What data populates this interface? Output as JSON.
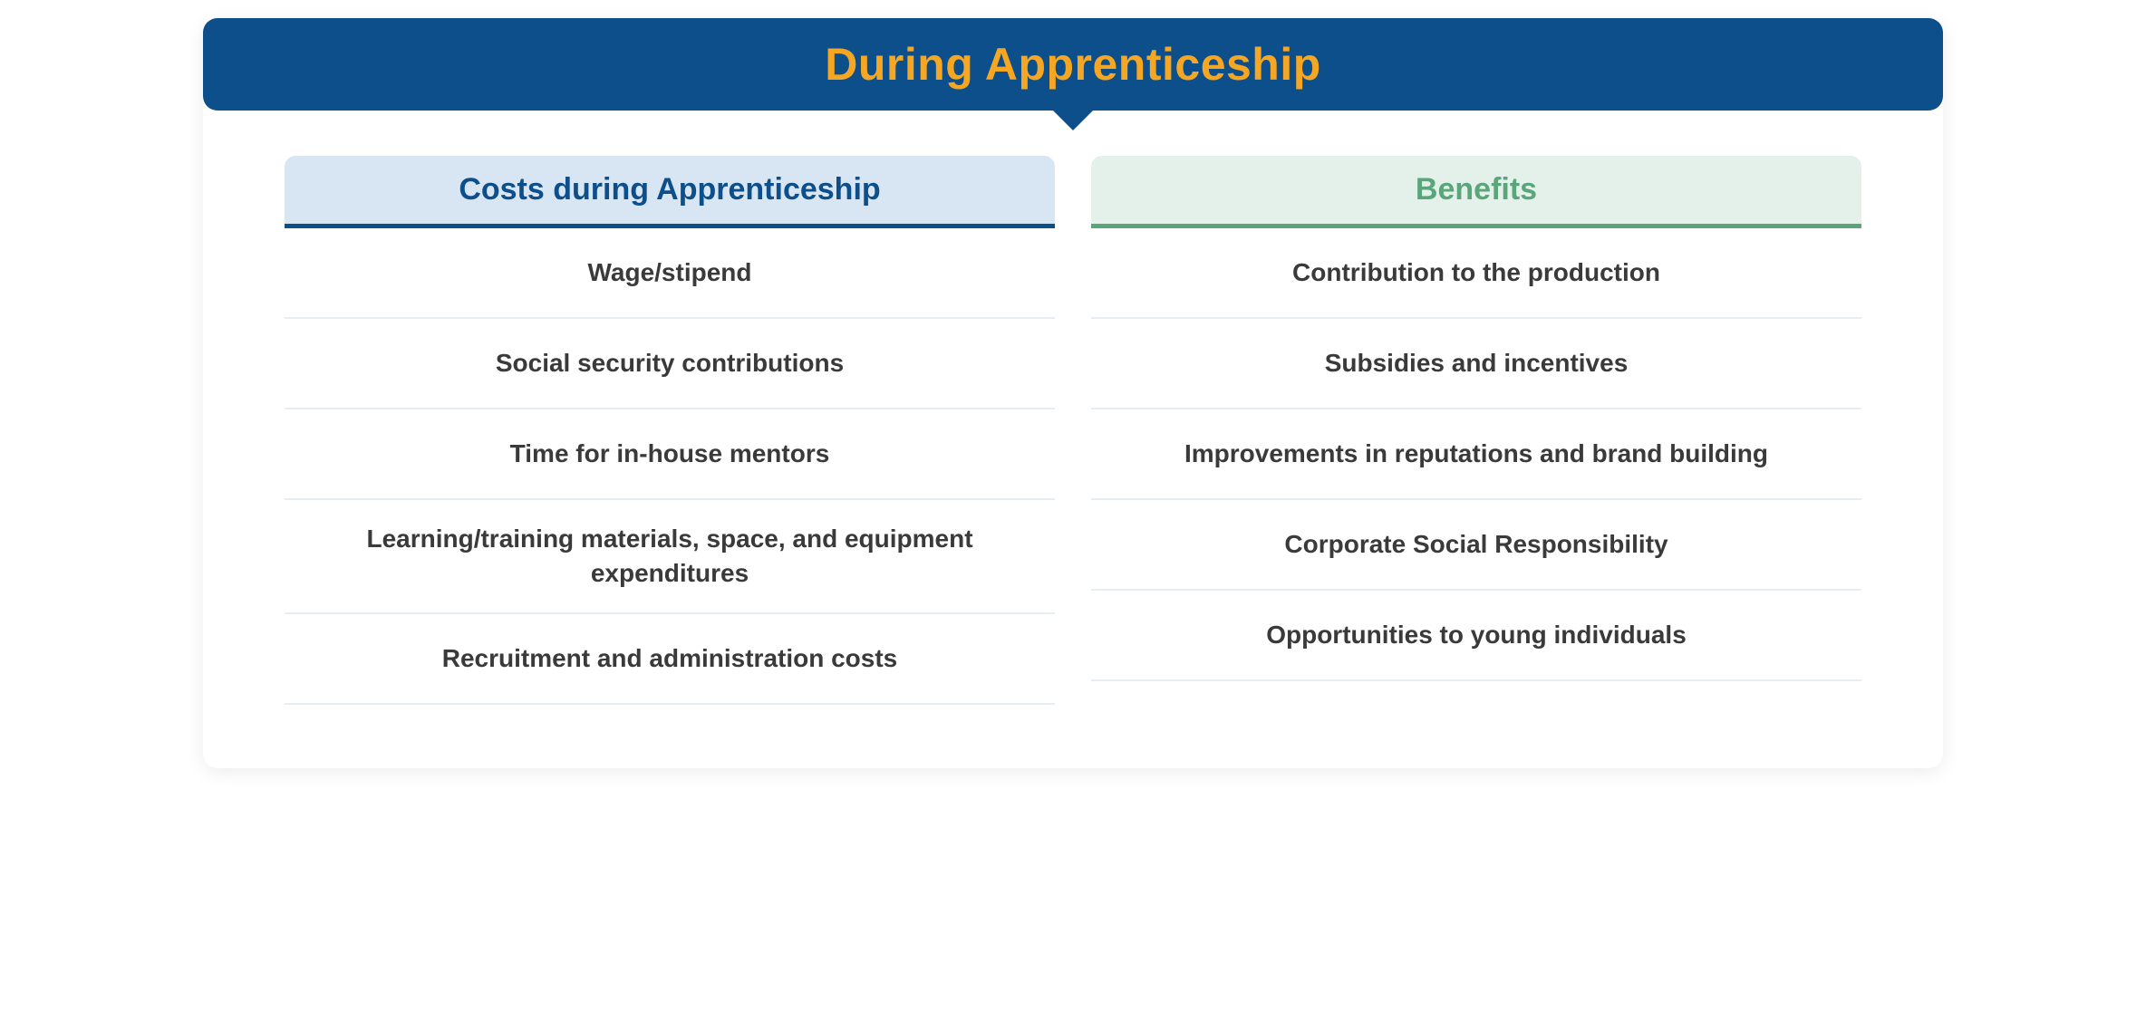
{
  "type": "infographic",
  "header": {
    "title": "During Apprenticeship",
    "background_color": "#0d4f8b",
    "text_color": "#f5a623",
    "title_fontsize": 50,
    "title_fontweight": 800,
    "border_radius": 16,
    "pointer_color": "#0d4f8b"
  },
  "layout": {
    "card_background": "#ffffff",
    "card_border_radius": 16,
    "card_shadow": "0 4px 20px rgba(0,0,0,0.08)",
    "columns_gap": 40,
    "columns_padding": "50px 90px 70px 90px",
    "item_divider_color": "#e6edf3",
    "item_text_color": "#3a3a3a",
    "item_fontsize": 28,
    "item_fontweight": 600,
    "item_min_height": 100
  },
  "columns": {
    "costs": {
      "title": "Costs during Apprenticeship",
      "header_background": "#d8e5f2",
      "header_text_color": "#0d4f8b",
      "header_underline_color": "#0d4f8b",
      "header_fontsize": 34,
      "header_fontweight": 700,
      "items": [
        "Wage/stipend",
        "Social security contributions",
        "Time for in-house mentors",
        "Learning/training materials, space, and equipment expenditures",
        "Recruitment and administration costs"
      ]
    },
    "benefits": {
      "title": "Benefits",
      "header_background": "#e3f1ea",
      "header_text_color": "#5aa57a",
      "header_underline_color": "#5aa57a",
      "header_fontsize": 34,
      "header_fontweight": 700,
      "items": [
        "Contribution to the production",
        "Subsidies and incentives",
        "Improvements in reputations and brand building",
        "Corporate Social Responsibility",
        "Opportunities to young individuals"
      ]
    }
  }
}
